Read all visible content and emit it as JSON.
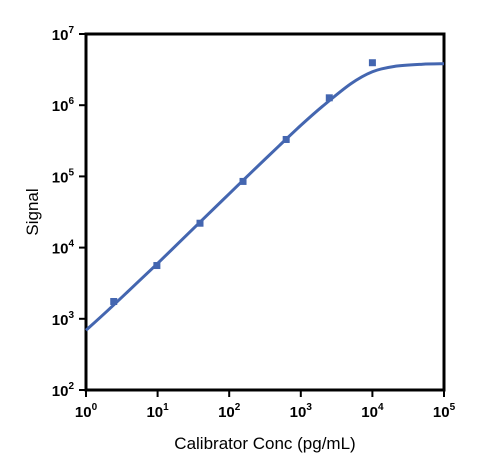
{
  "chart_data": {
    "type": "scatter",
    "title": "",
    "xlabel": "Calibrator Conc (pg/mL)",
    "ylabel": "Signal",
    "xscale": "log",
    "yscale": "log",
    "xlim": [
      1,
      100000
    ],
    "ylim": [
      100,
      10000000
    ],
    "x_ticks": [
      {
        "base": "10",
        "exp": "0",
        "value": 1
      },
      {
        "base": "10",
        "exp": "1",
        "value": 10
      },
      {
        "base": "10",
        "exp": "2",
        "value": 100
      },
      {
        "base": "10",
        "exp": "3",
        "value": 1000
      },
      {
        "base": "10",
        "exp": "4",
        "value": 10000
      },
      {
        "base": "10",
        "exp": "5",
        "value": 100000
      }
    ],
    "y_ticks": [
      {
        "base": "10",
        "exp": "2",
        "value": 100
      },
      {
        "base": "10",
        "exp": "3",
        "value": 1000
      },
      {
        "base": "10",
        "exp": "4",
        "value": 10000
      },
      {
        "base": "10",
        "exp": "5",
        "value": 100000
      },
      {
        "base": "10",
        "exp": "6",
        "value": 1000000
      },
      {
        "base": "10",
        "exp": "7",
        "value": 10000000
      }
    ],
    "grid": false,
    "color": "#4466b0",
    "series": [
      {
        "type": "scatter",
        "x": [
          2.44,
          9.77,
          39.1,
          156,
          625,
          2500,
          10000
        ],
        "y": [
          1750,
          5600,
          22000,
          85000,
          330000,
          1270000,
          3950000
        ]
      },
      {
        "type": "line",
        "x": [
          1,
          2,
          5,
          10,
          20,
          50,
          100,
          200,
          500,
          1000,
          2000,
          5000,
          10000,
          20000,
          50000,
          100000
        ],
        "y": [
          690,
          1300,
          3100,
          6000,
          11800,
          29000,
          57000,
          112000,
          270000,
          520000,
          960000,
          2000000,
          2950000,
          3500000,
          3760000,
          3820000
        ]
      }
    ]
  }
}
